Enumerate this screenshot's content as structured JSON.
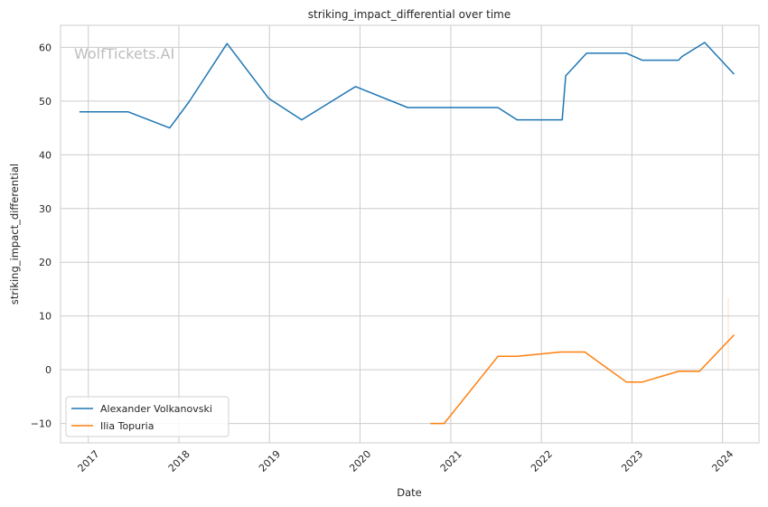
{
  "chart_data": {
    "type": "line",
    "title": "striking_impact_differential over time",
    "xlabel": "Date",
    "ylabel": "striking_impact_differential",
    "watermark": "WolfTickets.AI",
    "grid": true,
    "legend_position": "lower-left",
    "x_ticks": [
      "2017",
      "2018",
      "2019",
      "2020",
      "2021",
      "2022",
      "2023",
      "2024"
    ],
    "y_ticks": [
      60,
      50,
      40,
      30,
      20,
      10,
      0,
      -10
    ],
    "xlim": [
      "2016-09-11",
      "2024-05-27"
    ],
    "ylim": [
      -13.6,
      64.1
    ],
    "series": [
      {
        "name": "Alexander Volkanovski",
        "color": "#1f77b4",
        "points": [
          {
            "x": "2016-11-26",
            "y": 48.0
          },
          {
            "x": "2017-06-10",
            "y": 48.0
          },
          {
            "x": "2017-11-25",
            "y": 45.0
          },
          {
            "x": "2018-02-10",
            "y": 49.8
          },
          {
            "x": "2018-07-14",
            "y": 60.7
          },
          {
            "x": "2018-12-29",
            "y": 50.5
          },
          {
            "x": "2019-05-11",
            "y": 46.5
          },
          {
            "x": "2019-12-14",
            "y": 52.7
          },
          {
            "x": "2020-07-11",
            "y": 48.8
          },
          {
            "x": "2021-07-10",
            "y": 48.8
          },
          {
            "x": "2021-09-25",
            "y": 46.5
          },
          {
            "x": "2022-03-26",
            "y": 46.5
          },
          {
            "x": "2022-04-09",
            "y": 54.7
          },
          {
            "x": "2022-07-02",
            "y": 58.9
          },
          {
            "x": "2022-12-10",
            "y": 58.9
          },
          {
            "x": "2023-02-11",
            "y": 57.6
          },
          {
            "x": "2023-07-08",
            "y": 57.6
          },
          {
            "x": "2023-07-22",
            "y": 58.3
          },
          {
            "x": "2023-10-21",
            "y": 60.9
          },
          {
            "x": "2024-02-17",
            "y": 55.0
          }
        ]
      },
      {
        "name": "Ilia Topuria",
        "color": "#ff7f0e",
        "points": [
          {
            "x": "2020-10-10",
            "y": -10.0
          },
          {
            "x": "2020-12-05",
            "y": -10.0
          },
          {
            "x": "2021-07-10",
            "y": 2.5
          },
          {
            "x": "2021-09-25",
            "y": 2.5
          },
          {
            "x": "2022-03-19",
            "y": 3.3
          },
          {
            "x": "2022-06-25",
            "y": 3.3
          },
          {
            "x": "2022-12-10",
            "y": -2.3
          },
          {
            "x": "2023-02-11",
            "y": -2.3
          },
          {
            "x": "2023-07-08",
            "y": -0.3
          },
          {
            "x": "2023-09-30",
            "y": -0.3
          },
          {
            "x": "2024-02-17",
            "y": 6.5
          }
        ]
      }
    ]
  }
}
